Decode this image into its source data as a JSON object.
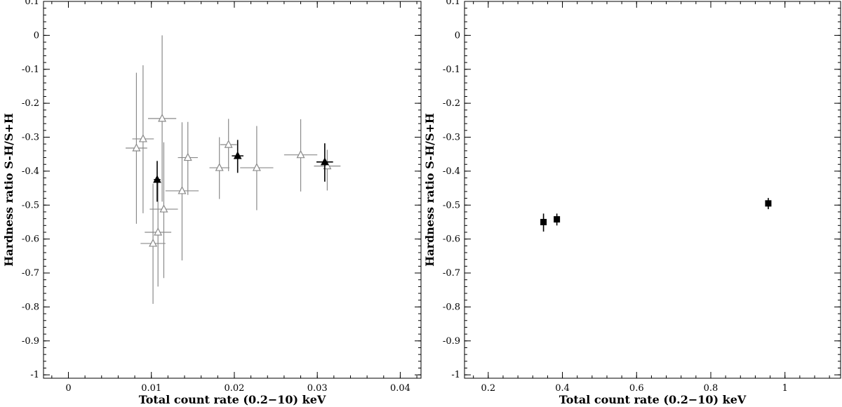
{
  "chart_data": [
    {
      "type": "scatter",
      "title": "",
      "xlabel": "Total count rate (0.2−10) keV",
      "ylabel": "Hardness ratio S-H/S+H",
      "xlim": [
        -0.003,
        0.0425
      ],
      "ylim": [
        -1.01,
        0.1
      ],
      "xticks": [
        0,
        0.01,
        0.02,
        0.03,
        0.04
      ],
      "xtick_labels": [
        "0",
        "0.01",
        "0.02",
        "0.03",
        "0.04"
      ],
      "yticks": [
        0.1,
        0,
        -0.1,
        -0.2,
        -0.3,
        -0.4,
        -0.5,
        -0.6,
        -0.7,
        -0.8,
        -0.9,
        -1
      ],
      "ytick_labels": [
        "0.1",
        "0",
        "-0.1",
        "-0.2",
        "-0.3",
        "-0.4",
        "-0.5",
        "-0.6",
        "-0.7",
        "-0.8",
        "-0.9",
        "-1"
      ],
      "grid": false,
      "legend": "none",
      "series": [
        {
          "marker": "open-triangle",
          "color": "#8a8a8a",
          "points": [
            {
              "x": 0.0082,
              "y": -0.332,
              "xerr": 0.0013,
              "yerr_lo": 0.223,
              "yerr_hi": 0.222
            },
            {
              "x": 0.009,
              "y": -0.305,
              "xerr": 0.0013,
              "yerr_lo": 0.219,
              "yerr_hi": 0.217
            },
            {
              "x": 0.0113,
              "y": -0.245,
              "xerr": 0.0017,
              "yerr_lo": 0.245,
              "yerr_hi": 0.245
            },
            {
              "x": 0.0102,
              "y": -0.613,
              "xerr": 0.0015,
              "yerr_lo": 0.178,
              "yerr_hi": 0.176
            },
            {
              "x": 0.0108,
              "y": -0.58,
              "xerr": 0.0016,
              "yerr_lo": 0.16,
              "yerr_hi": 0.16
            },
            {
              "x": 0.0115,
              "y": -0.512,
              "xerr": 0.0017,
              "yerr_lo": 0.203,
              "yerr_hi": 0.197
            },
            {
              "x": 0.0137,
              "y": -0.458,
              "xerr": 0.002,
              "yerr_lo": 0.205,
              "yerr_hi": 0.202
            },
            {
              "x": 0.0144,
              "y": -0.36,
              "xerr": 0.0012,
              "yerr_lo": 0.11,
              "yerr_hi": 0.105
            },
            {
              "x": 0.0182,
              "y": -0.39,
              "xerr": 0.0012,
              "yerr_lo": 0.092,
              "yerr_hi": 0.09
            },
            {
              "x": 0.0193,
              "y": -0.322,
              "xerr": 0.001,
              "yerr_lo": 0.078,
              "yerr_hi": 0.076
            },
            {
              "x": 0.0227,
              "y": -0.39,
              "xerr": 0.002,
              "yerr_lo": 0.125,
              "yerr_hi": 0.123
            },
            {
              "x": 0.028,
              "y": -0.352,
              "xerr": 0.002,
              "yerr_lo": 0.108,
              "yerr_hi": 0.105
            },
            {
              "x": 0.0312,
              "y": -0.385,
              "xerr": 0.0016,
              "yerr_lo": 0.072,
              "yerr_hi": 0.048
            }
          ]
        },
        {
          "marker": "filled-triangle",
          "color": "#000000",
          "points": [
            {
              "x": 0.0107,
              "y": -0.425,
              "xerr": 0.0004,
              "yerr_lo": 0.065,
              "yerr_hi": 0.055
            },
            {
              "x": 0.0204,
              "y": -0.355,
              "xerr": 0.0007,
              "yerr_lo": 0.05,
              "yerr_hi": 0.047
            },
            {
              "x": 0.0309,
              "y": -0.373,
              "xerr": 0.001,
              "yerr_lo": 0.058,
              "yerr_hi": 0.055
            }
          ]
        }
      ]
    },
    {
      "type": "scatter",
      "title": "",
      "xlabel": "Total count rate (0.2−10) keV",
      "ylabel": "Hardness ratio S-H/S+H",
      "xlim": [
        0.136,
        1.15
      ],
      "ylim": [
        -1.01,
        0.1
      ],
      "xticks": [
        0.2,
        0.4,
        0.6,
        0.8,
        1
      ],
      "xtick_labels": [
        "0.2",
        "0.4",
        "0.6",
        "0.8",
        "1"
      ],
      "yticks": [
        0.1,
        0,
        -0.1,
        -0.2,
        -0.3,
        -0.4,
        -0.5,
        -0.6,
        -0.7,
        -0.8,
        -0.9,
        -1
      ],
      "ytick_labels": [
        "0.1",
        "0",
        "-0.1",
        "-0.2",
        "-0.3",
        "-0.4",
        "-0.5",
        "-0.6",
        "-0.7",
        "-0.8",
        "-0.9",
        "-1"
      ],
      "grid": false,
      "legend": "none",
      "series": [
        {
          "marker": "filled-square",
          "color": "#000000",
          "points": [
            {
              "x": 0.349,
              "y": -0.55,
              "xerr": 0.004,
              "yerr_lo": 0.028,
              "yerr_hi": 0.025
            },
            {
              "x": 0.385,
              "y": -0.542,
              "xerr": 0.004,
              "yerr_lo": 0.018,
              "yerr_hi": 0.017
            },
            {
              "x": 0.955,
              "y": -0.495,
              "xerr": 0.005,
              "yerr_lo": 0.017,
              "yerr_hi": 0.016
            }
          ]
        }
      ]
    }
  ]
}
